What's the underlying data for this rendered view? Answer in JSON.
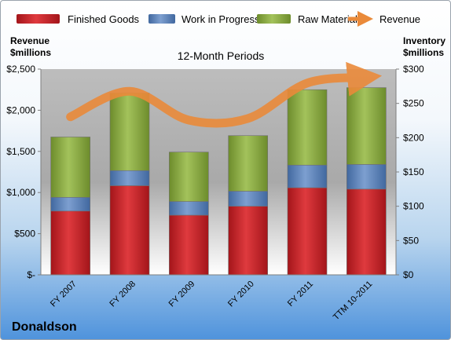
{
  "company": "Donaldson",
  "chart_data": {
    "type": "bar",
    "stacked": true,
    "subtitle": "12-Month Periods",
    "left_axis_label": [
      "Revenue",
      "$millions"
    ],
    "right_axis_label": [
      "Inventory",
      "$millions"
    ],
    "categories": [
      "FY 2007",
      "FY 2008",
      "FY 2009",
      "FY 2010",
      "FY 2011",
      "TTM 10-2011"
    ],
    "y_left": {
      "min": 0,
      "max": 2500,
      "ticks": [
        "$-",
        "$500",
        "$1,000",
        "$1,500",
        "$2,000",
        "$2,500"
      ]
    },
    "y_right": {
      "min": 0,
      "max": 300,
      "ticks": [
        "$0",
        "$50",
        "$100",
        "$150",
        "$200",
        "$250",
        "$300"
      ]
    },
    "series": [
      {
        "name": "Finished Goods",
        "axis": "right",
        "color": "#cc1f24",
        "values": [
          93,
          130,
          87,
          100,
          127,
          125
        ]
      },
      {
        "name": "Work in Progress",
        "axis": "right",
        "color": "#5a80b8",
        "values": [
          20,
          22,
          20,
          22,
          33,
          36
        ]
      },
      {
        "name": "Raw Materials",
        "axis": "right",
        "color": "#8aab3f",
        "values": [
          88,
          113,
          72,
          81,
          110,
          112
        ]
      }
    ],
    "line_series": {
      "name": "Revenue",
      "axis": "left",
      "color": "#ea8a3a",
      "values": [
        1920,
        2230,
        1880,
        1900,
        2330,
        2400
      ]
    },
    "legend": [
      "Finished Goods",
      "Work in Progress",
      "Raw Materials",
      "Revenue"
    ],
    "legend_position": "top",
    "grid": false
  }
}
